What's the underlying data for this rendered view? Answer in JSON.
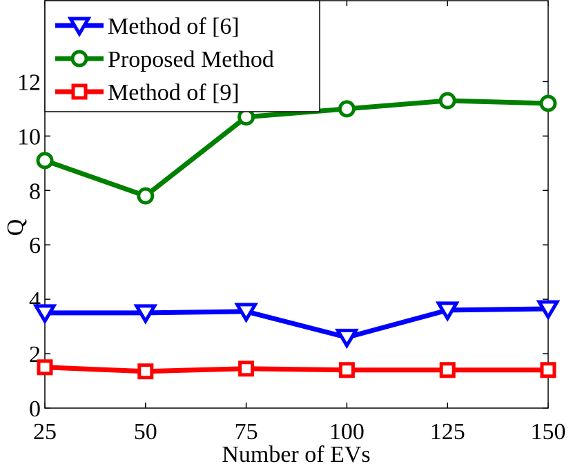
{
  "chart_data": {
    "type": "line",
    "title": "",
    "xlabel": "Number of EVs",
    "ylabel": "Q",
    "x": [
      25,
      50,
      75,
      100,
      125,
      150
    ],
    "xticks": [
      "25",
      "50",
      "75",
      "100",
      "125",
      "150"
    ],
    "yticks": [
      "0",
      "2",
      "4",
      "6",
      "8",
      "10",
      "12"
    ],
    "xlim": [
      25,
      150
    ],
    "ylim": [
      0,
      15
    ],
    "grid": false,
    "legend_position": "top-left",
    "series": [
      {
        "name": "Method of [6]",
        "color": "#0000ff",
        "marker": "triangle-down",
        "values": [
          3.5,
          3.5,
          3.55,
          2.6,
          3.6,
          3.65
        ]
      },
      {
        "name": "Proposed Method",
        "color": "#008000",
        "marker": "circle",
        "values": [
          9.1,
          7.8,
          10.7,
          11.0,
          11.3,
          11.2
        ]
      },
      {
        "name": "Method of [9]",
        "color": "#ff0000",
        "marker": "square",
        "values": [
          1.5,
          1.35,
          1.45,
          1.4,
          1.4,
          1.4
        ]
      }
    ]
  }
}
